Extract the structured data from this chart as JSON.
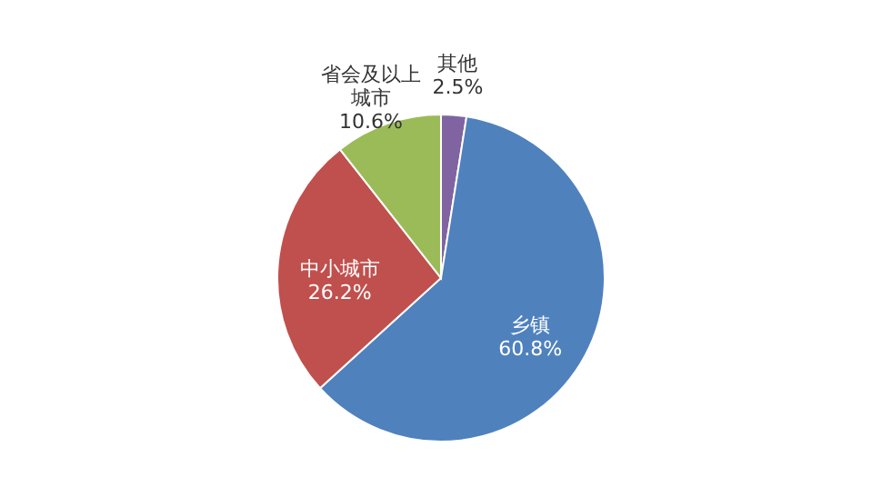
{
  "chart_data": {
    "type": "pie",
    "categories": [
      "其他",
      "乡镇",
      "中小城市",
      "省会及以上城市"
    ],
    "values": [
      2.5,
      60.8,
      26.2,
      10.6
    ],
    "colors": [
      "#8064a2",
      "#4f81bd",
      "#c0504d",
      "#9bbb59"
    ],
    "value_labels": [
      "2.5%",
      "60.8%",
      "26.2%",
      "10.6%"
    ],
    "legend": false
  }
}
